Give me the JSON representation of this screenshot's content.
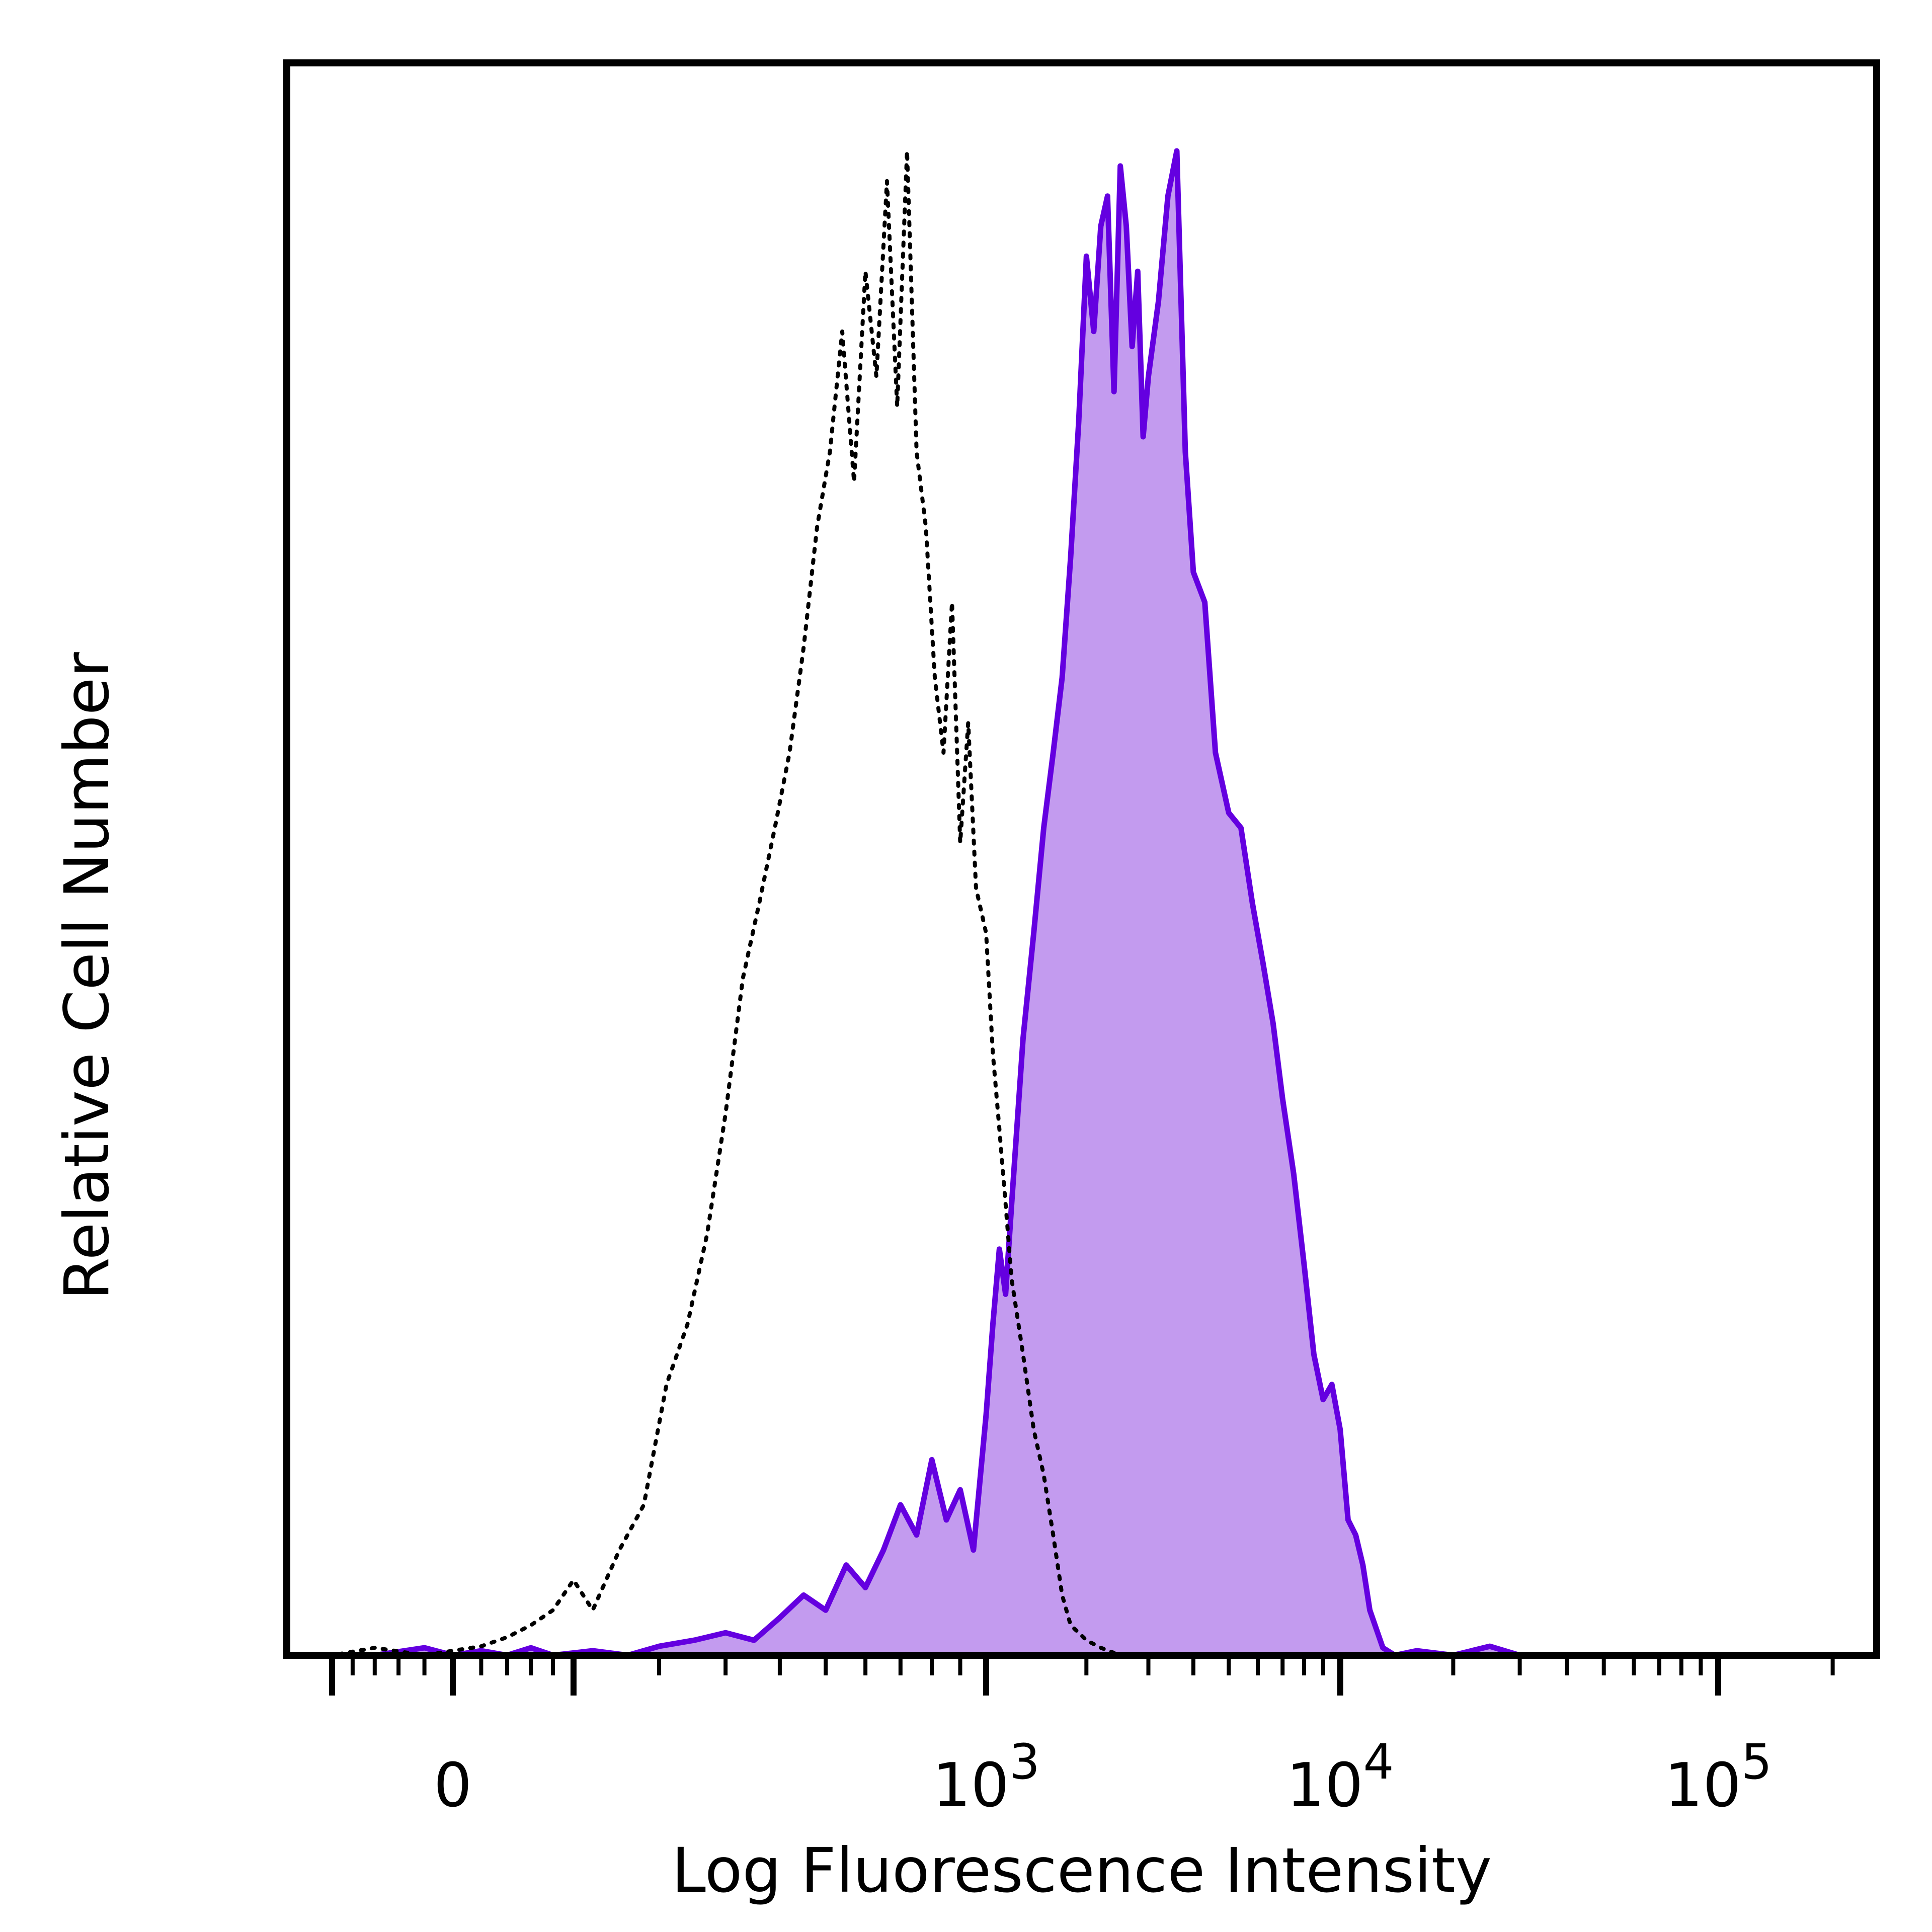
{
  "chart_data": {
    "type": "area",
    "xlabel": "Log Fluorescence Intensity",
    "ylabel": "Relative Cell Number",
    "x_scale": "biexponential",
    "xlim": [
      -150,
      200000
    ],
    "ylim": [
      0,
      100
    ],
    "grid": false,
    "legend": "none",
    "x_ticks": [
      {
        "value": 0,
        "label": "0",
        "exp": ""
      },
      {
        "value": 1000,
        "label": "10",
        "exp": "3"
      },
      {
        "value": 10000,
        "label": "10",
        "exp": "4"
      },
      {
        "value": 100000,
        "label": "10",
        "exp": "5"
      }
    ],
    "series": [
      {
        "style": "filled",
        "fill": "#c39bef",
        "stroke": "#6400e0",
        "x": [
          -140,
          -100,
          -60,
          -20,
          0,
          20,
          40,
          60,
          80,
          120,
          160,
          200,
          250,
          300,
          350,
          400,
          450,
          500,
          550,
          600,
          650,
          700,
          750,
          800,
          850,
          900,
          950,
          1000,
          1050,
          1100,
          1150,
          1200,
          1300,
          1400,
          1500,
          1600,
          1700,
          1800,
          1900,
          2000,
          2100,
          2200,
          2300,
          2400,
          2500,
          2600,
          2700,
          2800,
          2900,
          3000,
          3200,
          3400,
          3600,
          3800,
          4000,
          4300,
          4600,
          5000,
          5400,
          5800,
          6200,
          6600,
          7000,
          7500,
          8000,
          8500,
          9000,
          9500,
          10000,
          10500,
          11000,
          11500,
          12000,
          13000,
          14000,
          16000,
          20000,
          25000,
          30000,
          40000,
          60000,
          100000,
          150000,
          200000
        ],
        "y": [
          0,
          0,
          0,
          0.5,
          0,
          0.3,
          0,
          0.5,
          0,
          0.3,
          0,
          0.6,
          1,
          1.5,
          1,
          2.5,
          4,
          3,
          6,
          4.5,
          7,
          10,
          8,
          13,
          9,
          11,
          7,
          16,
          22,
          27,
          24,
          30,
          41,
          48,
          55,
          60,
          65,
          73,
          82,
          93,
          88,
          95,
          97,
          84,
          99,
          95,
          87,
          92,
          81,
          85,
          90,
          97,
          100,
          80,
          72,
          70,
          60,
          56,
          55,
          50,
          46,
          42,
          37,
          32,
          26,
          20,
          17,
          18,
          15,
          9,
          8,
          6,
          3,
          0.5,
          0,
          0.3,
          0,
          0.6,
          0,
          0,
          0,
          0,
          0,
          0
        ]
      },
      {
        "style": "dotted",
        "fill": "none",
        "stroke": "#000000",
        "x": [
          -140,
          -100,
          -60,
          -20,
          0,
          20,
          40,
          60,
          80,
          100,
          120,
          150,
          180,
          210,
          240,
          270,
          300,
          330,
          360,
          390,
          420,
          450,
          480,
          510,
          540,
          570,
          600,
          630,
          660,
          690,
          720,
          750,
          780,
          810,
          840,
          870,
          900,
          930,
          960,
          1000,
          1050,
          1100,
          1150,
          1200,
          1300,
          1400,
          1500,
          1600,
          1700,
          1800,
          1900,
          2000,
          2200,
          2500,
          3000,
          5000,
          10000,
          50000,
          200000
        ],
        "y": [
          0,
          0,
          0.5,
          0,
          0.3,
          0.6,
          1.2,
          2,
          3,
          5,
          3,
          7,
          10,
          18,
          22,
          28,
          36,
          45,
          50,
          55,
          60,
          67,
          75,
          80,
          88,
          78,
          92,
          85,
          98,
          83,
          100,
          80,
          75,
          65,
          60,
          70,
          54,
          62,
          51,
          48,
          40,
          35,
          30,
          25,
          20,
          15,
          12,
          8,
          4,
          2,
          1.5,
          1,
          0.5,
          0,
          0,
          0,
          0,
          0,
          0
        ]
      }
    ]
  }
}
